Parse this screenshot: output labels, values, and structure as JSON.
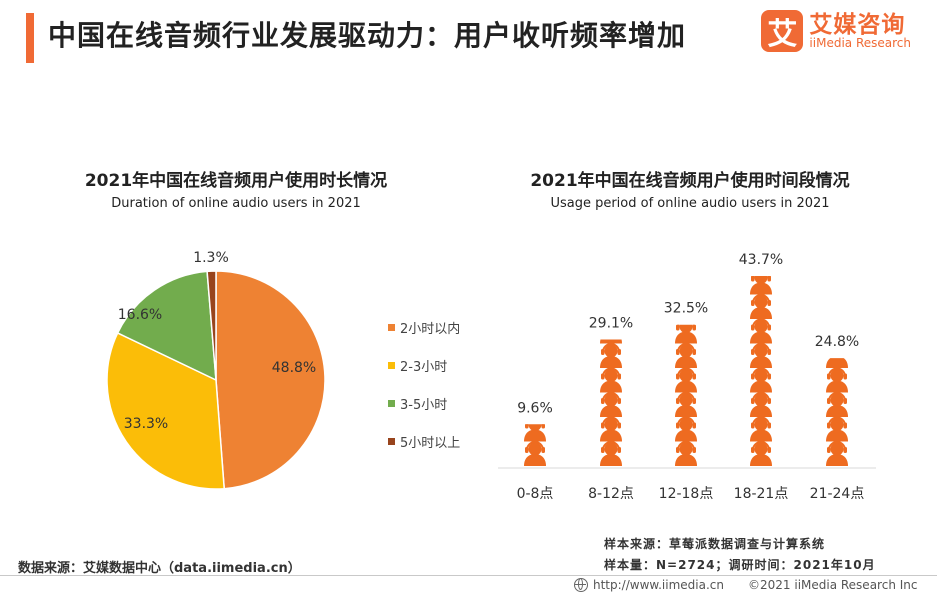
{
  "header": {
    "title": "中国在线音频行业发展驱动力：用户收听频率增加",
    "brand_mark": "艾",
    "brand_cn": "艾媒咨询",
    "brand_en": "iiMedia Research"
  },
  "chart_data": [
    {
      "type": "pie",
      "title": "2021年中国在线音频用户使用时长情况",
      "subtitle": "Duration of online audio users in 2021",
      "categories": [
        "2小时以内",
        "2-3小时",
        "3-5小时",
        "5小时以上"
      ],
      "values": [
        48.8,
        33.3,
        16.6,
        1.3
      ],
      "value_labels": [
        "48.8%",
        "33.3%",
        "16.6%",
        "1.3%"
      ],
      "unit": "%",
      "colors": [
        "#ee8233",
        "#fbbd08",
        "#72ac4d",
        "#98441d"
      ],
      "legend_position": "right"
    },
    {
      "type": "bar",
      "style": "pictogram",
      "title": "2021年中国在线音频用户使用时间段情况",
      "subtitle": "Usage period of online audio users in 2021",
      "categories": [
        "0-8点",
        "8-12点",
        "12-18点",
        "18-21点",
        "21-24点"
      ],
      "values": [
        9.6,
        29.1,
        32.5,
        43.7,
        24.8
      ],
      "value_labels": [
        "9.6%",
        "29.1%",
        "32.5%",
        "43.7%",
        "24.8%"
      ],
      "unit": "%",
      "ylim": [
        0,
        43.7
      ],
      "color": "#ee6b20"
    }
  ],
  "footer": {
    "source": "数据来源：艾媒数据中心（data.iimedia.cn）",
    "sample_source": "样本来源：草莓派数据调查与计算系统",
    "sample_size": "样本量：N=2724；调研时间：2021年10月",
    "url": "http://www.iimedia.cn",
    "copyright": "©2021  iiMedia Research  Inc"
  }
}
